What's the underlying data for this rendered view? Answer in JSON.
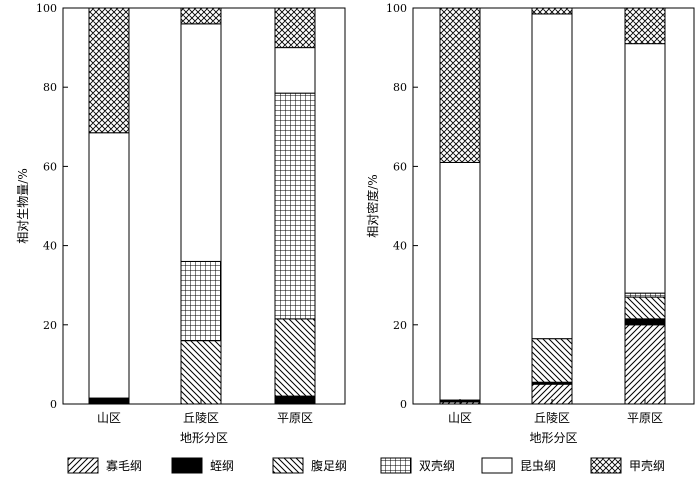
{
  "chart_data": [
    {
      "type": "bar",
      "stacked": true,
      "categories": [
        "山区",
        "丘陵区",
        "平原区"
      ],
      "xlabel": "地形分区",
      "ylabel": "相对生物量/%",
      "ylim": [
        0,
        100
      ],
      "yticks": [
        "0",
        "20",
        "40",
        "60",
        "80",
        "100"
      ],
      "series": [
        {
          "name": "寡毛纲",
          "values": [
            0,
            0,
            0
          ]
        },
        {
          "name": "蛭纲",
          "values": [
            1.5,
            0,
            2
          ]
        },
        {
          "name": "腹足纲",
          "values": [
            0,
            16,
            19.5
          ]
        },
        {
          "name": "双壳纲",
          "values": [
            0,
            20,
            57
          ]
        },
        {
          "name": "昆虫纲",
          "values": [
            67,
            60,
            11.5
          ]
        },
        {
          "name": "甲壳纲",
          "values": [
            31.5,
            4,
            10
          ]
        }
      ]
    },
    {
      "type": "bar",
      "stacked": true,
      "categories": [
        "山区",
        "丘陵区",
        "平原区"
      ],
      "xlabel": "地形分区",
      "ylabel": "相对密度/%",
      "ylim": [
        0,
        100
      ],
      "yticks": [
        "0",
        "20",
        "40",
        "60",
        "80",
        "100"
      ],
      "series": [
        {
          "name": "寡毛纲",
          "values": [
            0.5,
            5,
            20
          ]
        },
        {
          "name": "蛭纲",
          "values": [
            0.5,
            0.5,
            1.5
          ]
        },
        {
          "name": "腹足纲",
          "values": [
            0,
            11,
            5.5
          ]
        },
        {
          "name": "双壳纲",
          "values": [
            0,
            0,
            1
          ]
        },
        {
          "name": "昆虫纲",
          "values": [
            60,
            82,
            63
          ]
        },
        {
          "name": "甲壳纲",
          "values": [
            39,
            1.5,
            9
          ]
        }
      ]
    }
  ],
  "legend": {
    "items": [
      {
        "label": "寡毛纲",
        "pattern": "diag-right"
      },
      {
        "label": "蛭纲",
        "pattern": "solid-black"
      },
      {
        "label": "腹足纲",
        "pattern": "diag-left"
      },
      {
        "label": "双壳纲",
        "pattern": "grid"
      },
      {
        "label": "昆虫纲",
        "pattern": "white"
      },
      {
        "label": "甲壳纲",
        "pattern": "crosshatch"
      }
    ]
  }
}
